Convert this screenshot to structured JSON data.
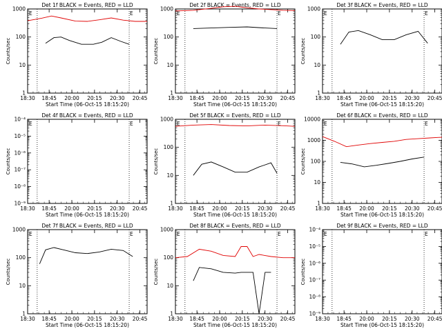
{
  "figure": {
    "time_ticks": [
      "18:30",
      "18:45",
      "20:00",
      "20:15",
      "20:30",
      "20:45"
    ],
    "xlabel": "Start Time (06-Oct-15 18:15:20)",
    "ylabel": "Counts/sec",
    "colors": {
      "events": "#000000",
      "lld": "#e00000"
    },
    "flag_marker": "E"
  },
  "chart_data": [
    {
      "type": "line",
      "title": "Det 1f BLACK = Events, RED = LLD",
      "xlabel": "Start Time (06-Oct-15 18:15:20)",
      "ylabel": "Counts/sec",
      "log_y": true,
      "ylim": [
        1,
        1000
      ],
      "ytick_labels": [
        "1",
        "10",
        "100",
        "1000"
      ],
      "xtick_labels": [
        "18:30",
        "18:45",
        "20:00",
        "20:15",
        "20:30",
        "20:45"
      ],
      "series": [
        {
          "color": "#e00000",
          "x": [
            0.0,
            0.12,
            0.2,
            0.28,
            0.4,
            0.5,
            0.6,
            0.7,
            0.8,
            0.9,
            1.0
          ],
          "y": [
            380,
            470,
            560,
            480,
            370,
            360,
            410,
            480,
            400,
            360,
            360
          ]
        },
        {
          "color": "#000000",
          "x": [
            0.15,
            0.22,
            0.28,
            0.35,
            0.45,
            0.55,
            0.62,
            0.7,
            0.78,
            0.85
          ],
          "y": [
            60,
            95,
            100,
            75,
            55,
            55,
            65,
            95,
            70,
            55
          ]
        }
      ]
    },
    {
      "type": "line",
      "title": "Det 2f BLACK = Events, RED = LLD",
      "xlabel": "Start Time (06-Oct-15 18:15:20)",
      "ylabel": "Counts/sec",
      "log_y": true,
      "ylim": [
        1,
        1000
      ],
      "ytick_labels": [
        "1",
        "10",
        "100",
        "1000"
      ],
      "xtick_labels": [
        "18:30",
        "18:45",
        "20:00",
        "20:15",
        "20:30",
        "20:45"
      ],
      "series": [
        {
          "color": "#e00000",
          "x": [
            0.0,
            0.15,
            0.3,
            0.4,
            0.5,
            0.6,
            0.7,
            0.8,
            0.9,
            1.0
          ],
          "y": [
            850,
            900,
            1050,
            1200,
            1250,
            1100,
            1000,
            950,
            900,
            880
          ]
        },
        {
          "color": "#000000",
          "x": [
            0.15,
            0.3,
            0.45,
            0.6,
            0.75,
            0.85
          ],
          "y": [
            200,
            210,
            220,
            230,
            210,
            200
          ]
        }
      ]
    },
    {
      "type": "line",
      "title": "Det 3f BLACK = Events, RED = LLD",
      "xlabel": "Start Time (06-Oct-15 18:15:20)",
      "ylabel": "Counts/sec",
      "log_y": true,
      "ylim": [
        1,
        1000
      ],
      "ytick_labels": [
        "1",
        "10",
        "100",
        "1000"
      ],
      "xtick_labels": [
        "18:30",
        "18:45",
        "20:00",
        "20:15",
        "20:30",
        "20:45"
      ],
      "series": [
        {
          "color": "#000000",
          "x": [
            0.15,
            0.22,
            0.3,
            0.4,
            0.5,
            0.6,
            0.7,
            0.8,
            0.88
          ],
          "y": [
            55,
            150,
            170,
            120,
            80,
            80,
            120,
            160,
            60
          ]
        }
      ]
    },
    {
      "type": "line",
      "title": "Det 4f BLACK = Events, RED = LLD",
      "xlabel": "Start Time (06-Oct-15 18:15:20)",
      "ylabel": "Counts/sec",
      "log_y": true,
      "ylim": [
        1e-09,
        0.0001
      ],
      "ytick_labels": [
        "10⁻⁹",
        "10⁻⁸",
        "10⁻⁷",
        "10⁻⁶",
        "10⁻⁵",
        "10⁻⁴"
      ],
      "xtick_labels": [
        "18:30",
        "18:45",
        "20:00",
        "20:15",
        "20:30",
        "20:45"
      ],
      "series": []
    },
    {
      "type": "line",
      "title": "Det 5f BLACK = Events, RED = LLD",
      "xlabel": "Start Time (06-Oct-15 18:15:20)",
      "ylabel": "Counts/sec",
      "log_y": true,
      "ylim": [
        1,
        1000
      ],
      "ytick_labels": [
        "1",
        "10",
        "100",
        "1000"
      ],
      "xtick_labels": [
        "18:30",
        "18:45",
        "20:00",
        "20:15",
        "20:30",
        "20:45"
      ],
      "series": [
        {
          "color": "#e00000",
          "x": [
            0.0,
            0.15,
            0.3,
            0.45,
            0.6,
            0.75,
            0.9,
            1.0
          ],
          "y": [
            560,
            620,
            650,
            600,
            580,
            620,
            590,
            560
          ]
        },
        {
          "color": "#000000",
          "x": [
            0.15,
            0.22,
            0.3,
            0.4,
            0.5,
            0.6,
            0.7,
            0.8,
            0.85
          ],
          "y": [
            10,
            25,
            30,
            20,
            13,
            13,
            20,
            28,
            12
          ]
        }
      ]
    },
    {
      "type": "line",
      "title": "Det 6f BLACK = Events, RED = LLD",
      "xlabel": "Start Time (06-Oct-15 18:15:20)",
      "ylabel": "Counts/sec",
      "log_y": true,
      "ylim": [
        1,
        10000
      ],
      "ytick_labels": [
        "1",
        "10",
        "100",
        "1000",
        "10000"
      ],
      "xtick_labels": [
        "18:30",
        "18:45",
        "20:00",
        "20:15",
        "20:30",
        "20:45"
      ],
      "series": [
        {
          "color": "#e00000",
          "x": [
            0.0,
            0.1,
            0.2,
            0.3,
            0.4,
            0.5,
            0.6,
            0.7,
            0.8,
            0.9,
            1.0
          ],
          "y": [
            1500,
            900,
            500,
            600,
            700,
            800,
            900,
            1100,
            1200,
            1300,
            1400
          ]
        },
        {
          "color": "#000000",
          "x": [
            0.15,
            0.25,
            0.35,
            0.45,
            0.55,
            0.65,
            0.75,
            0.85
          ],
          "y": [
            90,
            75,
            55,
            65,
            80,
            100,
            130,
            160
          ]
        }
      ]
    },
    {
      "type": "line",
      "title": "Det 7f BLACK = Events, RED = LLD",
      "xlabel": "Start Time (06-Oct-15 18:15:20)",
      "ylabel": "Counts/sec",
      "log_y": true,
      "ylim": [
        1,
        1000
      ],
      "ytick_labels": [
        "1",
        "10",
        "100",
        "1000"
      ],
      "xtick_labels": [
        "18:30",
        "18:45",
        "20:00",
        "20:15",
        "20:30",
        "20:45"
      ],
      "series": [
        {
          "color": "#000000",
          "x": [
            0.1,
            0.15,
            0.22,
            0.3,
            0.4,
            0.5,
            0.6,
            0.7,
            0.8,
            0.88
          ],
          "y": [
            60,
            190,
            230,
            190,
            150,
            140,
            160,
            200,
            180,
            110
          ]
        }
      ]
    },
    {
      "type": "line",
      "title": "Det 8f BLACK = Events, RED = LLD",
      "xlabel": "Start Time (06-Oct-15 18:15:20)",
      "ylabel": "Counts/sec",
      "log_y": true,
      "ylim": [
        1,
        1000
      ],
      "ytick_labels": [
        "1",
        "10",
        "100",
        "1000"
      ],
      "xtick_labels": [
        "18:30",
        "18:45",
        "20:00",
        "20:15",
        "20:30",
        "20:45"
      ],
      "series": [
        {
          "color": "#e00000",
          "x": [
            0.0,
            0.1,
            0.2,
            0.3,
            0.4,
            0.5,
            0.55,
            0.6,
            0.65,
            0.7,
            0.8,
            0.9,
            1.0
          ],
          "y": [
            100,
            110,
            200,
            170,
            120,
            110,
            250,
            250,
            110,
            130,
            110,
            100,
            100
          ]
        },
        {
          "color": "#000000",
          "x": [
            0.15,
            0.2,
            0.3,
            0.4,
            0.5,
            0.55,
            0.65,
            0.7,
            0.75,
            0.8
          ],
          "y": [
            15,
            45,
            40,
            30,
            28,
            30,
            30,
            1,
            30,
            30
          ]
        }
      ]
    },
    {
      "type": "line",
      "title": "Det 9f BLACK = Events, RED = LLD",
      "xlabel": "Start Time (06-Oct-15 18:15:20)",
      "ylabel": "Counts/sec",
      "log_y": true,
      "ylim": [
        1e-09,
        0.0001
      ],
      "ytick_labels": [
        "10⁻⁹",
        "10⁻⁸",
        "10⁻⁷",
        "10⁻⁶",
        "10⁻⁵",
        "10⁻⁴"
      ],
      "xtick_labels": [
        "18:30",
        "18:45",
        "20:00",
        "20:15",
        "20:30",
        "20:45"
      ],
      "series": []
    }
  ]
}
